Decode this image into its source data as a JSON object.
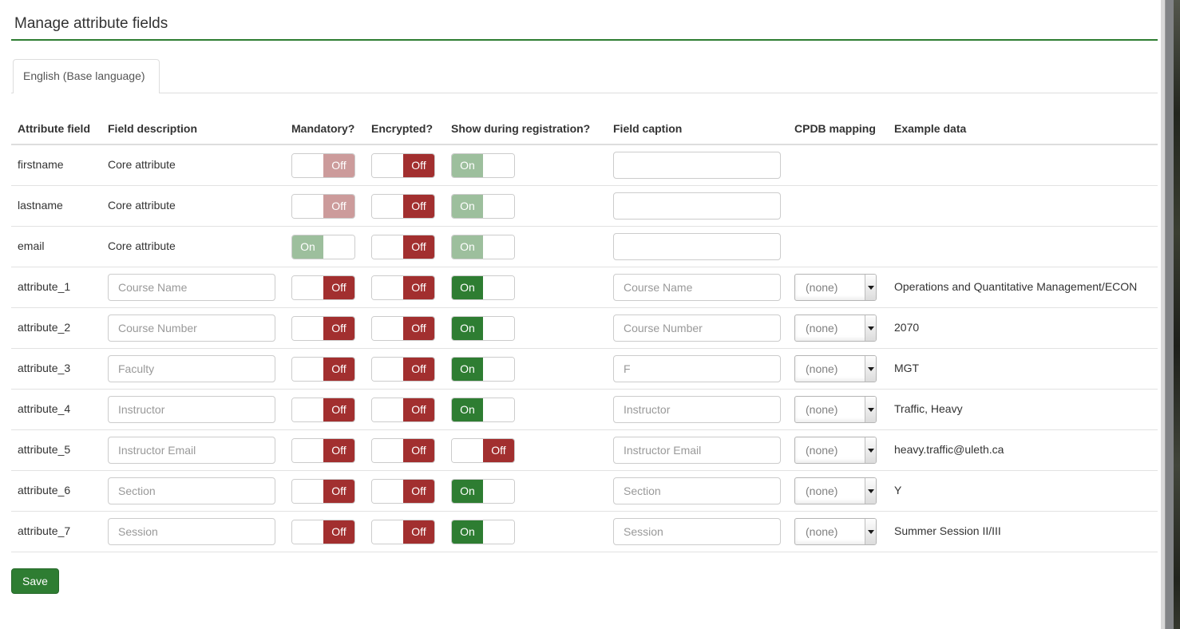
{
  "page_title": "Manage attribute fields",
  "tab": {
    "label": "English (Base language)"
  },
  "table": {
    "headers": {
      "attribute": "Attribute field",
      "description": "Field description",
      "mandatory": "Mandatory?",
      "encrypted": "Encrypted?",
      "show": "Show during registration?",
      "caption": "Field caption",
      "cpdb": "CPDB mapping",
      "example": "Example data"
    },
    "toggle_labels": {
      "on": "On",
      "off": "Off"
    },
    "rows": [
      {
        "name": "firstname",
        "type": "core",
        "description": "Core attribute",
        "mandatory": "off-muted",
        "encrypted": "off",
        "show": "on-muted",
        "caption": "",
        "has_cpdb": false,
        "cpdb": "",
        "example": ""
      },
      {
        "name": "lastname",
        "type": "core",
        "description": "Core attribute",
        "mandatory": "off-muted",
        "encrypted": "off",
        "show": "on-muted",
        "caption": "",
        "has_cpdb": false,
        "cpdb": "",
        "example": ""
      },
      {
        "name": "email",
        "type": "core",
        "description": "Core attribute",
        "mandatory": "on-muted",
        "encrypted": "off",
        "show": "on-muted",
        "caption": "",
        "has_cpdb": false,
        "cpdb": "",
        "example": ""
      },
      {
        "name": "attribute_1",
        "type": "custom",
        "description": "Course Name",
        "mandatory": "off",
        "encrypted": "off",
        "show": "on",
        "caption": "Course Name",
        "has_cpdb": true,
        "cpdb": "(none)",
        "example": "Operations and Quantitative Management/ECON"
      },
      {
        "name": "attribute_2",
        "type": "custom",
        "description": "Course Number",
        "mandatory": "off",
        "encrypted": "off",
        "show": "on",
        "caption": "Course Number",
        "has_cpdb": true,
        "cpdb": "(none)",
        "example": "2070"
      },
      {
        "name": "attribute_3",
        "type": "custom",
        "description": "Faculty",
        "mandatory": "off",
        "encrypted": "off",
        "show": "on",
        "caption": "F",
        "has_cpdb": true,
        "cpdb": "(none)",
        "example": "MGT"
      },
      {
        "name": "attribute_4",
        "type": "custom",
        "description": "Instructor",
        "mandatory": "off",
        "encrypted": "off",
        "show": "on",
        "caption": "Instructor",
        "has_cpdb": true,
        "cpdb": "(none)",
        "example": "Traffic, Heavy"
      },
      {
        "name": "attribute_5",
        "type": "custom",
        "description": "Instructor Email",
        "mandatory": "off",
        "encrypted": "off",
        "show": "off",
        "caption": "Instructor Email",
        "has_cpdb": true,
        "cpdb": "(none)",
        "example": "heavy.traffic@uleth.ca"
      },
      {
        "name": "attribute_6",
        "type": "custom",
        "description": "Section",
        "mandatory": "off",
        "encrypted": "off",
        "show": "on",
        "caption": "Section",
        "has_cpdb": true,
        "cpdb": "(none)",
        "example": "Y"
      },
      {
        "name": "attribute_7",
        "type": "custom",
        "description": "Session",
        "mandatory": "off",
        "encrypted": "off",
        "show": "on",
        "caption": "Session",
        "has_cpdb": true,
        "cpdb": "(none)",
        "example": "Summer Session II/III"
      }
    ]
  },
  "save_button_label": "Save",
  "colors": {
    "accent_green": "#2e7d32",
    "toggle_on": "#2e7d32",
    "toggle_on_muted": "#9dbf9d",
    "toggle_off": "#a22f2f",
    "toggle_off_muted": "#cc9b9b"
  }
}
